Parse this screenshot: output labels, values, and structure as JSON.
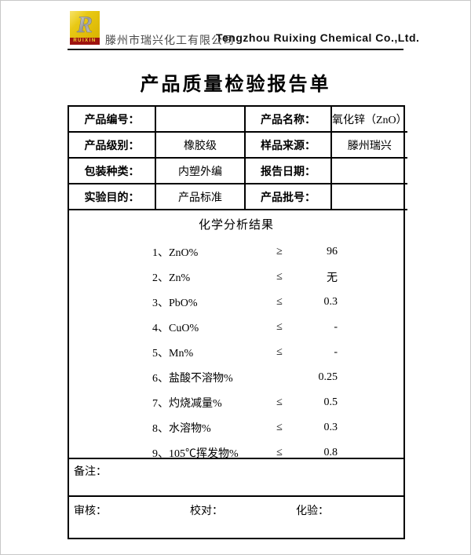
{
  "header": {
    "logo_text": "RUIXIN",
    "logo_letter": "R",
    "logo_colors": {
      "square": "#e9c915",
      "strip": "#9e1310",
      "letter": "#b8b8b8"
    },
    "company_cn": "滕州市瑞兴化工有限公司",
    "company_en": "Tengzhou Ruixing Chemical Co.,Ltd."
  },
  "title": "产品质量检验报告单",
  "info_table": {
    "rows": [
      {
        "label1": "产品编号：",
        "value1": "",
        "label2": "产品名称：",
        "value2": "氧化锌（ZnO）"
      },
      {
        "label1": "产品级别：",
        "value1": "橡胶级",
        "label2": "样品来源：",
        "value2": "滕州瑞兴"
      },
      {
        "label1": "包装种类：",
        "value1": "内塑外编",
        "label2": "报告日期：",
        "value2": ""
      },
      {
        "label1": "实验目的：",
        "value1": "产品标准",
        "label2": "产品批号：",
        "value2": ""
      }
    ]
  },
  "analysis": {
    "title": "化学分析结果",
    "items": [
      {
        "name": "1、ZnO%",
        "relation": "≥",
        "value": "96"
      },
      {
        "name": "2、Zn%",
        "relation": "≤",
        "value": "无"
      },
      {
        "name": "3、PbO%",
        "relation": "≤",
        "value": "0.3"
      },
      {
        "name": "4、CuO%",
        "relation": "≤",
        "value": "-"
      },
      {
        "name": "5、Mn%",
        "relation": "≤",
        "value": "-"
      },
      {
        "name": "6、盐酸不溶物%",
        "relation": "",
        "value": "0.25"
      },
      {
        "name": "7、灼烧减量%",
        "relation": "≤",
        "value": "0.5"
      },
      {
        "name": "8、水溶物%",
        "relation": "≤",
        "value": "0.3"
      },
      {
        "name": "9、105℃挥发物%",
        "relation": "≤",
        "value": "0.8"
      }
    ]
  },
  "remarks_label": "备注：",
  "signatures": {
    "review": "审核：",
    "proofread": "校对：",
    "assay": "化验："
  }
}
